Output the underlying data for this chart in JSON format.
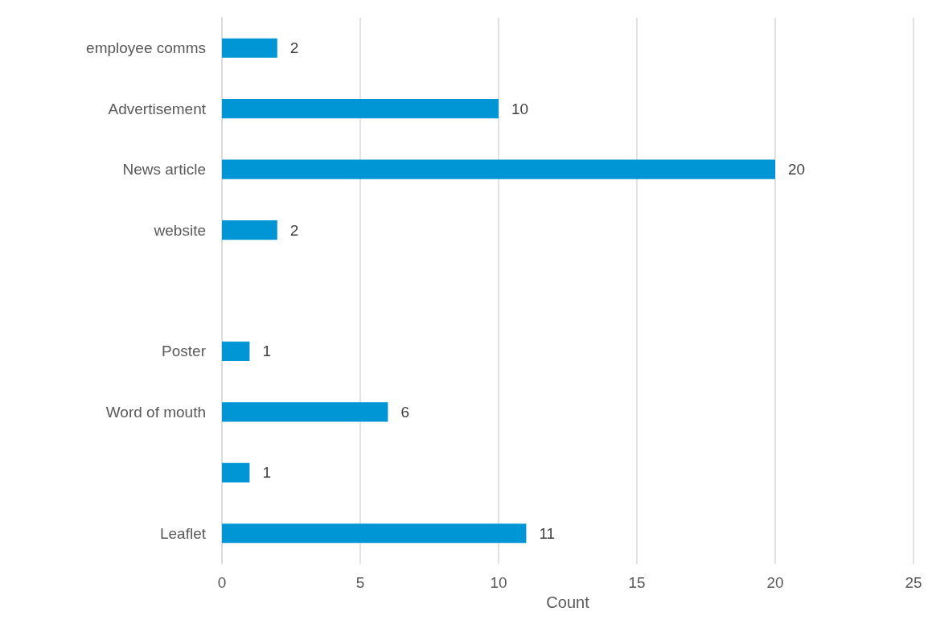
{
  "chart_data": {
    "type": "bar",
    "orientation": "horizontal",
    "xlabel": "Count",
    "categories": [
      "employee comms",
      "Advertisement",
      "News article",
      "website",
      null,
      "Poster",
      "Word of mouth",
      null,
      "Leaflet"
    ],
    "values": [
      2,
      10,
      20,
      2,
      0,
      1,
      6,
      1,
      11
    ],
    "value_labels": [
      "2",
      "10",
      "20",
      "2",
      null,
      "1",
      "6",
      "1",
      "11"
    ],
    "color": "#0096d6",
    "xlim": [
      0,
      25
    ],
    "xticks": [
      0,
      5,
      10,
      15,
      20,
      25
    ],
    "grid": "x"
  }
}
